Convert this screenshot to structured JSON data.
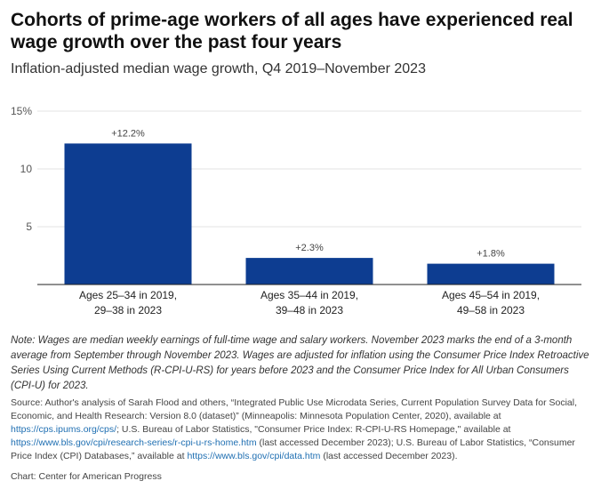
{
  "title": "Cohorts of prime-age workers of all ages have experienced real wage growth over the past four years",
  "subtitle": "Inflation-adjusted median wage growth, Q4 2019–November 2023",
  "chart_data": {
    "type": "bar",
    "categories": [
      [
        "Ages 25–34 in 2019,",
        "29–38 in 2023"
      ],
      [
        "Ages 35–44 in 2019,",
        "39–48 in 2023"
      ],
      [
        "Ages 45–54 in 2019,",
        "49–58 in 2023"
      ]
    ],
    "values": [
      12.2,
      2.3,
      1.8
    ],
    "data_labels": [
      "+12.2%",
      "+2.3%",
      "+1.8%"
    ],
    "ylim": [
      0,
      15
    ],
    "yticks": [
      5,
      10,
      15
    ],
    "ytick_labels": [
      "5",
      "10",
      "15%"
    ],
    "bar_color": "#0d3d91",
    "grid": true
  },
  "note": "Note: Wages are median weekly earnings of full-time wage and salary workers. November 2023 marks the end of a 3-month average from September through November 2023. Wages are adjusted for inflation using the Consumer Price Index Retroactive Series Using Current Methods (R-CPI-U-RS) for years before 2023 and the Consumer Price Index for All Urban Consumers (CPI-U) for 2023.",
  "source": {
    "part1": "Source: Author's analysis of Sarah Flood and others, “Integrated Public Use Microdata Series, Current Population Survey Data for Social, Economic, and Health Research: Version 8.0 (dataset)” (Minneapolis: Minnesota Population Center, 2020), available at ",
    "link1": "https://cps.ipums.org/cps/",
    "part2": "; U.S. Bureau of Labor Statistics, \"Consumer Price Index: R-CPI-U-RS Homepage,\" available at ",
    "link2": "https://www.bls.gov/cpi/research-series/r-cpi-u-rs-home.htm",
    "part3": " (last accessed December 2023); U.S. Bureau of Labor Statistics, “Consumer Price Index (CPI) Databases,” available at ",
    "link3": "https://www.bls.gov/cpi/data.htm",
    "part4": " (last accessed December 2023)."
  },
  "credit": "Chart: Center for American Progress"
}
